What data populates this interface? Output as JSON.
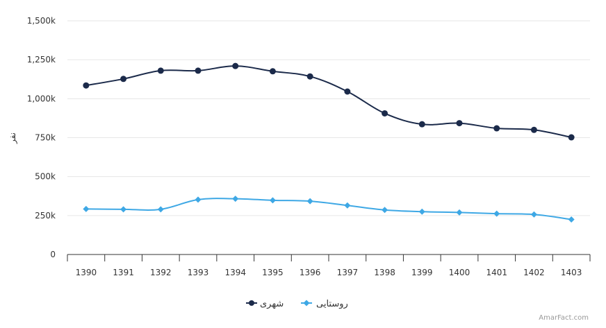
{
  "chart_data": {
    "type": "line",
    "x": [
      "1390",
      "1391",
      "1392",
      "1393",
      "1394",
      "1395",
      "1396",
      "1397",
      "1398",
      "1399",
      "1400",
      "1401",
      "1402",
      "1403"
    ],
    "series": [
      {
        "name": "شهری",
        "color": "#1b2a4a",
        "marker": "circle",
        "values": [
          1085000,
          1127000,
          1180000,
          1180000,
          1210000,
          1176000,
          1143000,
          1046000,
          906000,
          836000,
          843000,
          810000,
          800000,
          752000
        ]
      },
      {
        "name": "روستایی",
        "color": "#3ea8e5",
        "marker": "diamond",
        "values": [
          292000,
          290000,
          290000,
          352000,
          358000,
          348000,
          342000,
          315000,
          286000,
          275000,
          270000,
          262000,
          257000,
          225000
        ]
      }
    ],
    "ylabel": "نفر",
    "ylim": [
      0,
      1500000
    ],
    "yticks": [
      0,
      250000,
      500000,
      750000,
      1000000,
      1250000,
      1500000
    ],
    "ytick_labels": [
      "0",
      "250k",
      "500k",
      "750k",
      "1,000k",
      "1,250k",
      "1,500k"
    ],
    "grid": true,
    "legend": "bottom-center"
  },
  "credit": "AmarFact.com"
}
